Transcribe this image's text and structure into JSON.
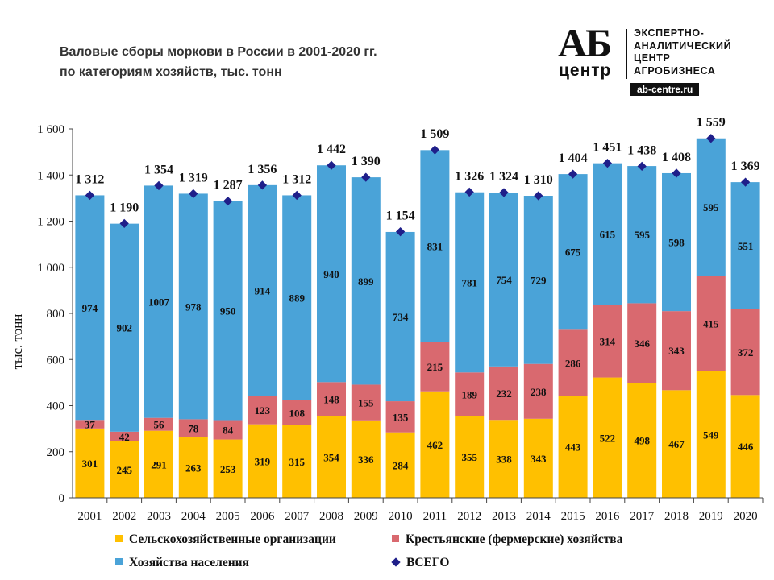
{
  "title_line1": "Валовые сборы моркови в России в 2001-2020 гг.",
  "title_line2": "по категориям хозяйств, тыс. тонн",
  "logo": {
    "ab": "АБ",
    "center": "центр",
    "line1": "ЭКСПЕРТНО-",
    "line2": "АНАЛИТИЧЕСКИЙ",
    "line3": "ЦЕНТР",
    "line4": "АГРОБИЗНЕСА",
    "site": "ab-centre.ru"
  },
  "colors": {
    "agri": "#FFC000",
    "farm": "#D9696F",
    "house": "#4AA3D8",
    "total": "#1F1F8A"
  },
  "legend": {
    "agri": "Сельскохозяйственные организации",
    "farm": "Крестьянские (фермерские) хозяйства",
    "house": "Хозяйства населения",
    "total": "ВСЕГО"
  },
  "chart_data": {
    "type": "bar",
    "stacked": true,
    "title": "Валовые сборы моркови в России в 2001-2020 гг. по категориям хозяйств, тыс. тонн",
    "xlabel": "",
    "ylabel": "тыс. тонн",
    "ylim": [
      0,
      1600
    ],
    "yticks": [
      0,
      200,
      400,
      600,
      800,
      1000,
      1200,
      1400,
      1600
    ],
    "ytick_labels": [
      "0",
      "200",
      "400",
      "600",
      "800",
      "1 000",
      "1 200",
      "1 400",
      "1 600"
    ],
    "categories": [
      "2001",
      "2002",
      "2003",
      "2004",
      "2005",
      "2006",
      "2007",
      "2008",
      "2009",
      "2010",
      "2011",
      "2012",
      "2013",
      "2014",
      "2015",
      "2016",
      "2017",
      "2018",
      "2019",
      "2020"
    ],
    "series": [
      {
        "name": "Сельскохозяйственные организации",
        "values": [
          301,
          245,
          291,
          263,
          253,
          319,
          315,
          354,
          336,
          284,
          462,
          355,
          338,
          343,
          443,
          522,
          498,
          467,
          549,
          446
        ]
      },
      {
        "name": "Крестьянские (фермерские) хозяйства",
        "values": [
          37,
          42,
          56,
          78,
          84,
          123,
          108,
          148,
          155,
          135,
          215,
          189,
          232,
          238,
          286,
          314,
          346,
          343,
          415,
          372
        ]
      },
      {
        "name": "Хозяйства населения",
        "values": [
          974,
          902,
          1007,
          978,
          950,
          914,
          889,
          940,
          899,
          734,
          831,
          781,
          754,
          729,
          675,
          615,
          595,
          598,
          595,
          551
        ]
      }
    ],
    "totals": {
      "name": "ВСЕГО",
      "values": [
        1312,
        1190,
        1354,
        1319,
        1287,
        1356,
        1312,
        1442,
        1390,
        1154,
        1509,
        1326,
        1324,
        1310,
        1404,
        1451,
        1438,
        1408,
        1559,
        1369
      ],
      "labels": [
        "1 312",
        "1 190",
        "1 354",
        "1 319",
        "1 287",
        "1 356",
        "1 312",
        "1 442",
        "1 390",
        "1 154",
        "1 509",
        "1 326",
        "1 324",
        "1 310",
        "1 404",
        "1 451",
        "1 438",
        "1 408",
        "1 559",
        "1 369"
      ]
    },
    "legend_position": "bottom"
  }
}
